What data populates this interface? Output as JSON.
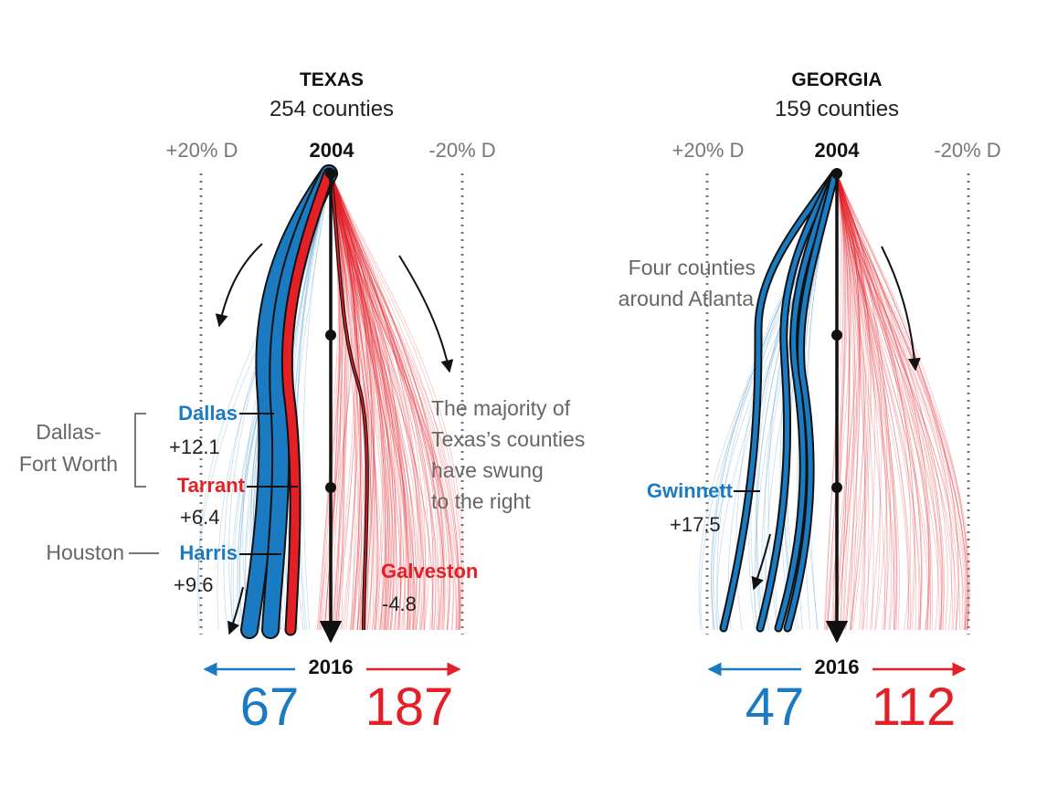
{
  "colors": {
    "dem": "#1b7bc2",
    "rep": "#e41f26",
    "ink": "#111111",
    "grey": "#666666"
  },
  "axis": {
    "left_tick": "+20% D",
    "right_tick": "-20% D",
    "start_year": "2004",
    "end_year": "2016"
  },
  "panels": [
    {
      "title": "TEXAS",
      "subtitle": "254 counties",
      "dem_count": "67",
      "rep_count": "187",
      "counties": [
        {
          "name": "Dallas",
          "swing": "+12.1",
          "party": "dem"
        },
        {
          "name": "Tarrant",
          "swing": "+6.4",
          "party": "rep"
        },
        {
          "name": "Harris",
          "swing": "+9.6",
          "party": "dem"
        },
        {
          "name": "Galveston",
          "swing": "-4.8",
          "party": "rep"
        }
      ],
      "notes": {
        "metro1": [
          "Dallas-",
          "Fort Worth"
        ],
        "metro2": "Houston",
        "majority": [
          "The majority of",
          "Texas’s counties",
          "have swung",
          "to the right"
        ]
      }
    },
    {
      "title": "GEORGIA",
      "subtitle": "159 counties",
      "dem_count": "47",
      "rep_count": "112",
      "counties": [
        {
          "name": "Gwinnett",
          "swing": "+17.5",
          "party": "dem"
        }
      ],
      "notes": {
        "atlanta": [
          "Four counties",
          "around Atlanta"
        ]
      }
    }
  ]
}
